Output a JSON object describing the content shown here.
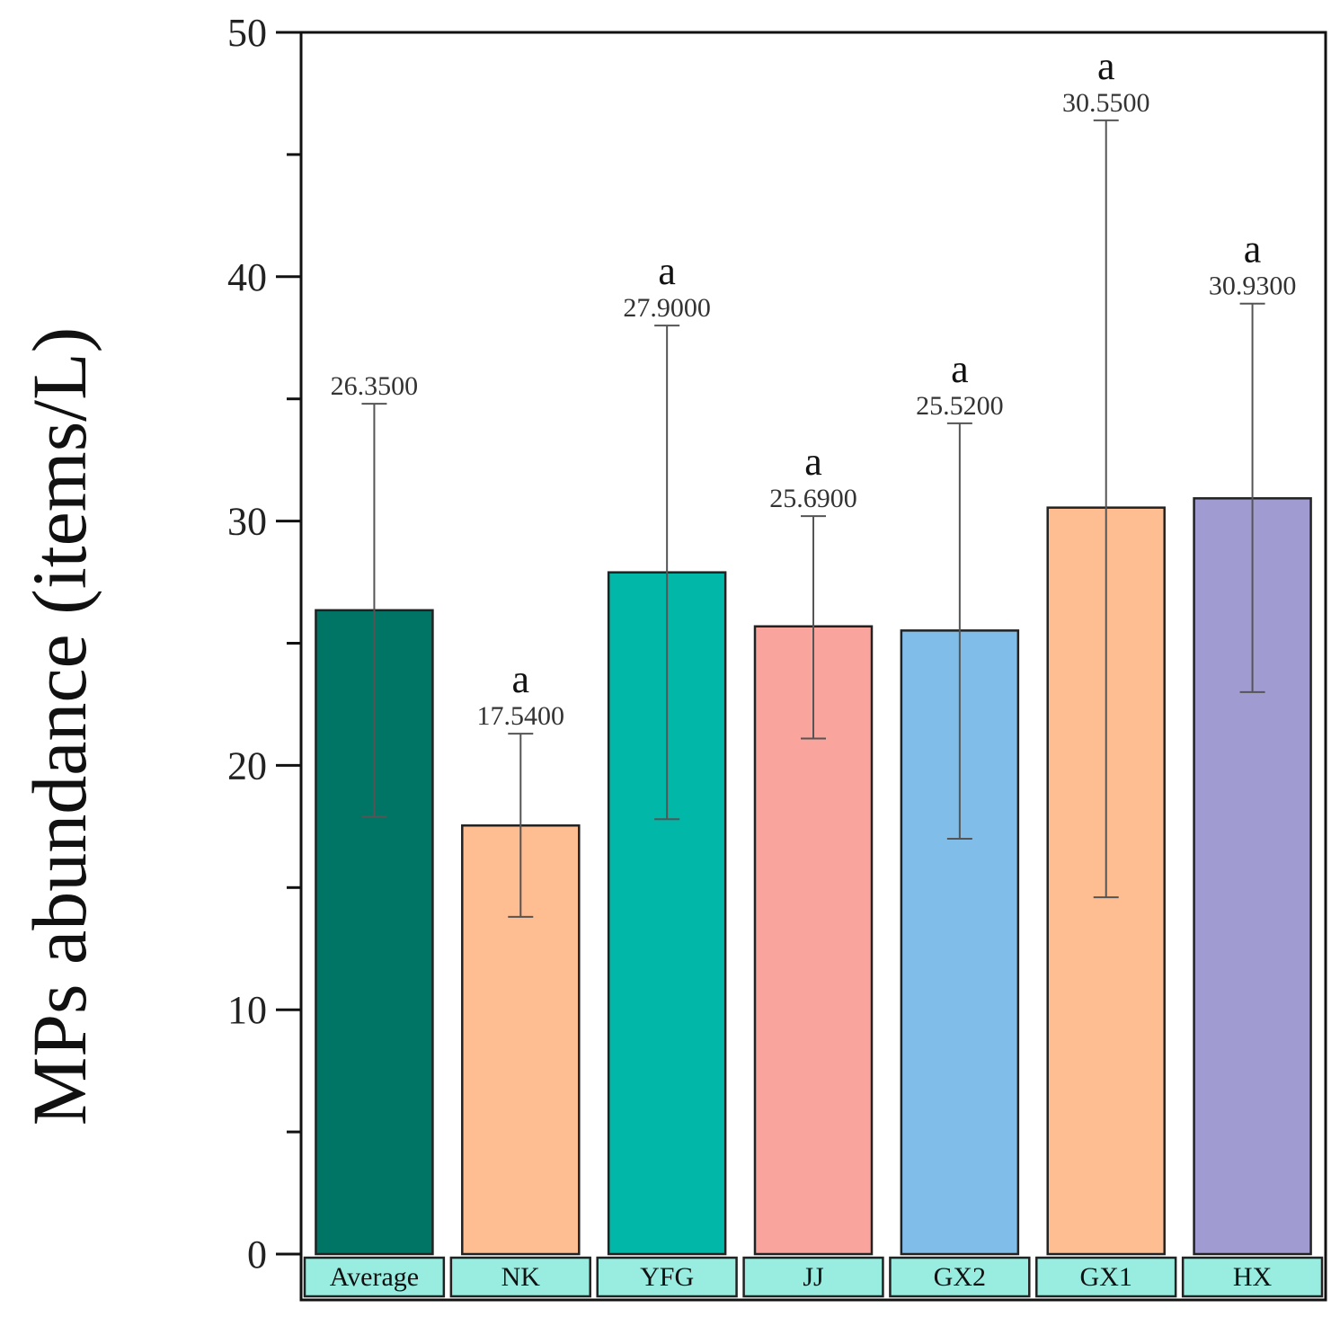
{
  "chart_data": {
    "type": "bar",
    "title": "",
    "xlabel": "",
    "ylabel": "MPs abundance (items/L)",
    "ylim": [
      0,
      50
    ],
    "yticks": [
      0,
      10,
      20,
      30,
      40,
      50
    ],
    "grid": false,
    "categories": [
      "Average",
      "NK",
      "YFG",
      "JJ",
      "GX2",
      "GX1",
      "HX"
    ],
    "values": [
      26.35,
      17.54,
      27.9,
      25.69,
      25.52,
      30.55,
      30.93
    ],
    "value_labels": [
      "26.3500",
      "17.5400",
      "27.9000",
      "25.6900",
      "25.5200",
      "30.5500",
      "30.9300"
    ],
    "error_low": [
      17.9,
      13.8,
      17.8,
      21.1,
      17.0,
      14.6,
      23.0
    ],
    "error_high": [
      34.8,
      21.3,
      38.0,
      30.2,
      34.0,
      46.4,
      38.9
    ],
    "significance": [
      "",
      "a",
      "a",
      "a",
      "a",
      "a",
      "a"
    ],
    "colors": [
      "#007566",
      "#ffbe91",
      "#00b7a8",
      "#f9a59d",
      "#80bde8",
      "#ffbe91",
      "#a09bd1"
    ],
    "category_box_color": "#98ece0"
  }
}
